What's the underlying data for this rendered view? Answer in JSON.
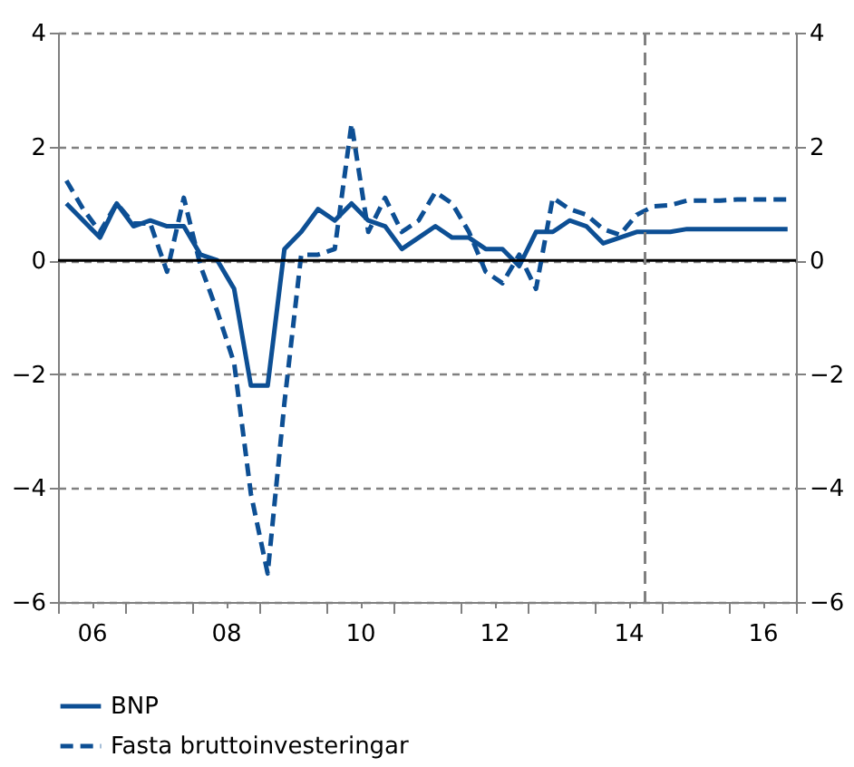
{
  "chart_data": {
    "type": "line",
    "x": [
      2005.625,
      2005.875,
      2006.125,
      2006.375,
      2006.625,
      2006.875,
      2007.125,
      2007.375,
      2007.625,
      2007.875,
      2008.125,
      2008.375,
      2008.625,
      2008.875,
      2009.125,
      2009.375,
      2009.625,
      2009.875,
      2010.125,
      2010.375,
      2010.625,
      2010.875,
      2011.125,
      2011.375,
      2011.625,
      2011.875,
      2012.125,
      2012.375,
      2012.625,
      2012.875,
      2013.125,
      2013.375,
      2013.625,
      2013.875,
      2014.125,
      2014.375,
      2014.625,
      2014.875,
      2015.125,
      2015.375,
      2015.625,
      2015.875,
      2016.125,
      2016.375
    ],
    "series": [
      {
        "name": "BNP",
        "color": "#0d4f94",
        "line_style": "solid",
        "values": [
          1.0,
          0.7,
          0.4,
          1.0,
          0.6,
          0.7,
          0.6,
          0.6,
          0.1,
          0.0,
          -0.5,
          -2.2,
          -2.2,
          0.2,
          0.5,
          0.9,
          0.7,
          1.0,
          0.7,
          0.6,
          0.2,
          0.4,
          0.6,
          0.4,
          0.4,
          0.2,
          0.2,
          -0.1,
          0.5,
          0.5,
          0.7,
          0.6,
          0.3,
          0.4,
          0.5,
          0.5,
          0.5,
          0.55,
          0.55,
          0.55,
          0.55,
          0.55,
          0.55,
          0.55
        ]
      },
      {
        "name": "Fasta bruttoinvesteringar",
        "color": "#0d4f94",
        "line_style": "dashed",
        "values": [
          1.4,
          0.9,
          0.5,
          1.0,
          0.65,
          0.65,
          -0.2,
          1.1,
          -0.1,
          -0.9,
          -1.8,
          -4.1,
          -5.5,
          -2.5,
          0.1,
          0.1,
          0.2,
          2.4,
          0.5,
          1.1,
          0.5,
          0.7,
          1.2,
          1.0,
          0.5,
          -0.2,
          -0.4,
          0.1,
          -0.5,
          1.1,
          0.9,
          0.8,
          0.55,
          0.45,
          0.8,
          0.95,
          0.97,
          1.05,
          1.05,
          1.05,
          1.07,
          1.07,
          1.07,
          1.07
        ]
      }
    ],
    "xlim": [
      2005.5,
      2016.5
    ],
    "xticks": [
      {
        "value": 2005.5,
        "label": null
      },
      {
        "value": 2006,
        "label": "06"
      },
      {
        "value": 2006.5,
        "label": null
      },
      {
        "value": 2007.5,
        "label": null
      },
      {
        "value": 2008,
        "label": "08"
      },
      {
        "value": 2008.5,
        "label": null
      },
      {
        "value": 2009.5,
        "label": null
      },
      {
        "value": 2010,
        "label": "10"
      },
      {
        "value": 2010.5,
        "label": null
      },
      {
        "value": 2011.5,
        "label": null
      },
      {
        "value": 2012,
        "label": "12"
      },
      {
        "value": 2012.5,
        "label": null
      },
      {
        "value": 2013.5,
        "label": null
      },
      {
        "value": 2014,
        "label": "14"
      },
      {
        "value": 2014.5,
        "label": null
      },
      {
        "value": 2015.5,
        "label": null
      },
      {
        "value": 2016,
        "label": "16"
      },
      {
        "value": 2016.5,
        "label": null
      }
    ],
    "ylim": [
      -6,
      4
    ],
    "yticks": [
      -6,
      -4,
      -2,
      0,
      2,
      4
    ],
    "y2lim": [
      -6,
      4
    ],
    "y2ticks": [
      -6,
      -4,
      -2,
      0,
      2,
      4
    ],
    "ref_lines": [
      {
        "axis": "y",
        "value": 0,
        "color": "#000000",
        "line_style": "solid"
      },
      {
        "axis": "x",
        "value": 2014.25,
        "color": "#808080",
        "line_style": "dashed"
      }
    ],
    "grid": "y",
    "legend": "bottom"
  }
}
